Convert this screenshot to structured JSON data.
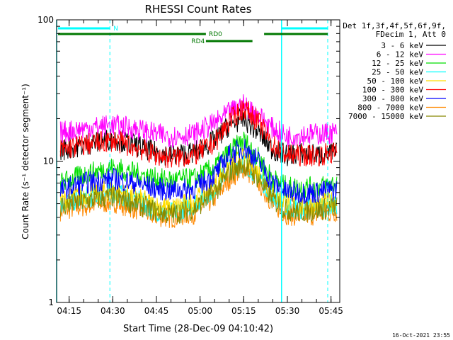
{
  "chart_data": {
    "type": "line",
    "title": "RHESSI Count Rates",
    "xlabel": "Start Time (28-Dec-09 04:10:42)",
    "ylabel": "Count Rate (s⁻¹ detector segment⁻¹)",
    "yscale": "log",
    "ylim": [
      1,
      100
    ],
    "xlim": [
      "04:10:42",
      "05:48"
    ],
    "x_ticks": [
      "04:15",
      "04:30",
      "04:45",
      "05:00",
      "05:15",
      "05:30",
      "05:45"
    ],
    "y_ticks": [
      "1",
      "10",
      "100"
    ],
    "x": [
      "04:12",
      "04:20",
      "04:30",
      "04:38",
      "04:45",
      "04:50",
      "04:58",
      "05:05",
      "05:10",
      "05:15",
      "05:20",
      "05:25",
      "05:30",
      "05:35",
      "05:40",
      "05:47"
    ],
    "series": [
      {
        "name": "3 - 6 keV",
        "color": "#000000",
        "values": [
          12,
          13,
          14.5,
          13,
          11.5,
          11,
          11.5,
          14,
          18,
          20,
          16,
          12,
          11,
          11.5,
          11,
          11.5
        ]
      },
      {
        "name": "6 - 12 keV",
        "color": "#ff00ff",
        "values": [
          16,
          17,
          18,
          17,
          15.5,
          15,
          15.5,
          18.5,
          22,
          25,
          21,
          17,
          15,
          15.5,
          15.5,
          16
        ]
      },
      {
        "name": "12 - 25 keV",
        "color": "#00dd00",
        "values": [
          7,
          8,
          9,
          8.2,
          7.5,
          7.3,
          7.5,
          9,
          11.5,
          14,
          10.5,
          7.5,
          6.5,
          6.5,
          6.5,
          7
        ]
      },
      {
        "name": "25 - 50 keV",
        "color": "#00ffff",
        "values": [
          5,
          5.5,
          6,
          5.3,
          4.5,
          4.3,
          5,
          6.5,
          9,
          10,
          8,
          5.8,
          4.8,
          4.6,
          4.7,
          5
        ]
      },
      {
        "name": "50 - 100 keV",
        "color": "#ffdd00",
        "values": [
          5.2,
          5.8,
          6.2,
          5.5,
          4.8,
          4.6,
          5.2,
          6.8,
          9.3,
          10.5,
          8.3,
          6,
          5,
          4.8,
          4.9,
          5.2
        ]
      },
      {
        "name": "100 - 300 keV",
        "color": "#ff0000",
        "values": [
          12,
          13,
          14,
          12.5,
          11,
          10.5,
          11,
          13.5,
          19,
          24,
          19,
          13,
          11,
          11,
          11,
          11.5
        ]
      },
      {
        "name": "300 - 800 keV",
        "color": "#0000ff",
        "values": [
          6.2,
          7,
          7.5,
          7,
          6.4,
          6.2,
          6.4,
          8,
          11,
          12.5,
          10,
          7,
          6,
          6,
          6,
          6.3
        ]
      },
      {
        "name": "800 - 7000 keV",
        "color": "#ff8800",
        "values": [
          4.5,
          4.8,
          5.2,
          4.6,
          4.1,
          4,
          4.3,
          5.5,
          7.5,
          9,
          7.2,
          5,
          4.2,
          4.1,
          4.2,
          4.4
        ]
      },
      {
        "name": "7000 - 15000 keV",
        "color": "#888800",
        "values": [
          4.8,
          5.2,
          5.6,
          5,
          4.4,
          4.2,
          4.6,
          6,
          8.2,
          9.5,
          7.6,
          5.3,
          4.5,
          4.4,
          4.5,
          4.7
        ]
      }
    ],
    "legend": {
      "placement": "right",
      "header": [
        "Det 1f,3f,4f,5f,6f,9f,",
        "FDecim 1, Att 0"
      ]
    },
    "annotations": {
      "night_label": "N",
      "rd0_label": "RD0",
      "rd4_label": "RD4",
      "timestamp": "16-Oct-2021 23:55"
    }
  }
}
